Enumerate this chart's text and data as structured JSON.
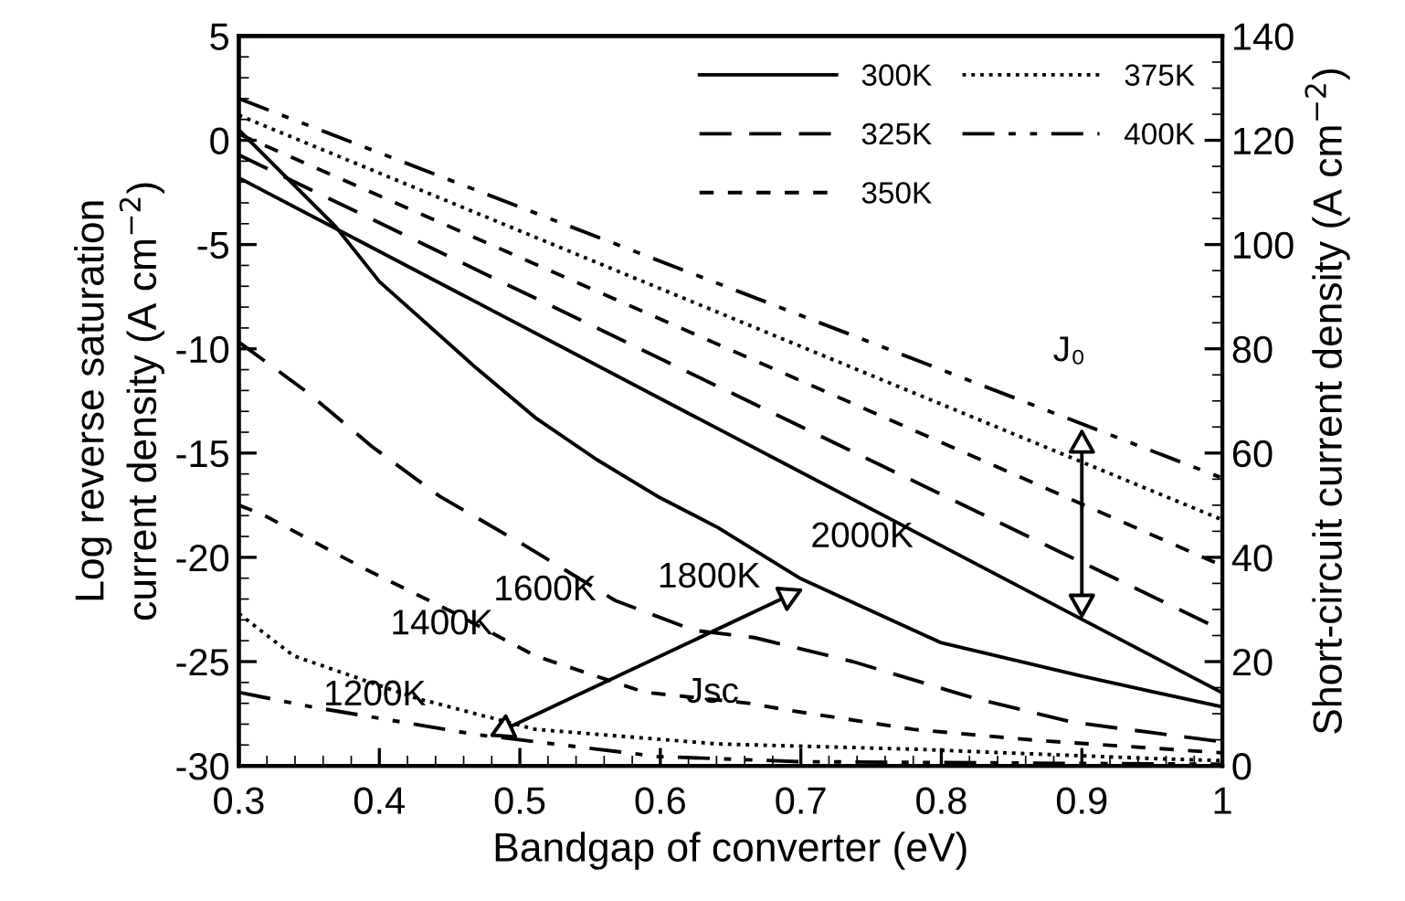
{
  "chart_data": {
    "type": "line",
    "xlabel": "Bandgap of converter (eV)",
    "ylabel": "Log reverse saturation\ncurrent density (A cm$^{−2}$)",
    "y2label": "Short-circuit current density (A cm$^{−2}$)",
    "xlim": [
      0.3,
      1
    ],
    "xticks": [
      0.3,
      0.4,
      0.5,
      0.6,
      0.7,
      0.8,
      0.9,
      1
    ],
    "ylim": [
      -30,
      5
    ],
    "yticks": [
      -30,
      -25,
      -20,
      -15,
      -10,
      -5,
      0,
      5
    ],
    "y2lim": [
      0,
      140
    ],
    "y2ticks": [
      0,
      20,
      40,
      60,
      80,
      100,
      120,
      140
    ],
    "grid": false,
    "legend": "top right",
    "marker": "none",
    "series": [
      {
        "name": "300K",
        "color": "#000000",
        "line_style": "solid",
        "x": [
          0.3,
          1
        ],
        "values": [
          -1.8,
          -26.5
        ]
      },
      {
        "name": "325K",
        "color": "#000000",
        "line_style": "longdash",
        "x": [
          0.3,
          1
        ],
        "values": [
          -0.7,
          -23.5
        ]
      },
      {
        "name": "350K",
        "color": "#000000",
        "line_style": "dashed",
        "x": [
          0.3,
          1
        ],
        "values": [
          0.3,
          -20.4
        ]
      },
      {
        "name": "375K",
        "color": "#000000",
        "line_style": "dotted",
        "x": [
          0.3,
          1
        ],
        "values": [
          1.2,
          -18.2
        ]
      },
      {
        "name": "400K",
        "color": "#000000",
        "line_style": "dashdot",
        "x": [
          0.3,
          1
        ],
        "values": [
          2.0,
          -16.2
        ]
      },
      {
        "axis": "y2",
        "color": "#000000",
        "line_style": "solid",
        "x": [
          0.3,
          0.369,
          0.4,
          0.469,
          0.511,
          0.555,
          0.598,
          0.641,
          0.7,
          0.8,
          0.9,
          1
        ],
        "values": [
          122,
          103.4,
          92.9,
          76.3,
          66.8,
          58.7,
          51.7,
          45.7,
          35.9,
          23.6,
          17.2,
          11.3
        ]
      },
      {
        "axis": "y2",
        "color": "#000000",
        "line_style": "longdash",
        "x": [
          0.3,
          0.348,
          0.395,
          0.443,
          0.504,
          0.568,
          0.624,
          0.667,
          0.737,
          0.823,
          0.893,
          1
        ],
        "values": [
          81.3,
          71.8,
          61.2,
          51.7,
          42.2,
          31.7,
          26.0,
          24.6,
          20.0,
          13.0,
          8.4,
          4.6
        ]
      },
      {
        "axis": "y2",
        "color": "#000000",
        "line_style": "dashed",
        "x": [
          0.3,
          0.317,
          0.391,
          0.452,
          0.511,
          0.589,
          0.663,
          0.693,
          0.78,
          0.867,
          1
        ],
        "values": [
          50,
          48.2,
          37.6,
          29.5,
          21.1,
          14.1,
          12.0,
          10.6,
          7.0,
          4.9,
          2.5
        ]
      },
      {
        "axis": "y2",
        "color": "#000000",
        "line_style": "dotted",
        "x": [
          0.3,
          0.339,
          0.426,
          0.511,
          0.641,
          0.78,
          0.95,
          1
        ],
        "values": [
          29.2,
          21.1,
          13.0,
          7.0,
          4.2,
          3.2,
          1.4,
          1.0
        ]
      },
      {
        "axis": "y2",
        "color": "#000000",
        "line_style": "dashdot",
        "x": [
          0.3,
          0.352,
          0.469,
          0.598,
          0.7,
          1
        ],
        "values": [
          14.1,
          11.3,
          6.0,
          1.8,
          0.8,
          0.3
        ]
      }
    ],
    "annotations": [
      {
        "text": "J₀",
        "x": 0.9,
        "y": -13.8
      },
      {
        "text": "Jsc",
        "x": 0.637,
        "y": -23.6
      },
      {
        "text": "1200K",
        "x": 0.478,
        "y": -28.6
      },
      {
        "text": "1400K",
        "x": 0.495,
        "y": -28.0
      },
      {
        "text": "1600K",
        "x": 0.563,
        "y": -26.0
      },
      {
        "text": "1800K",
        "x": 0.631,
        "y": -23.8
      },
      {
        "text": "2000K",
        "x": 0.702,
        "y": -21.5
      }
    ]
  }
}
